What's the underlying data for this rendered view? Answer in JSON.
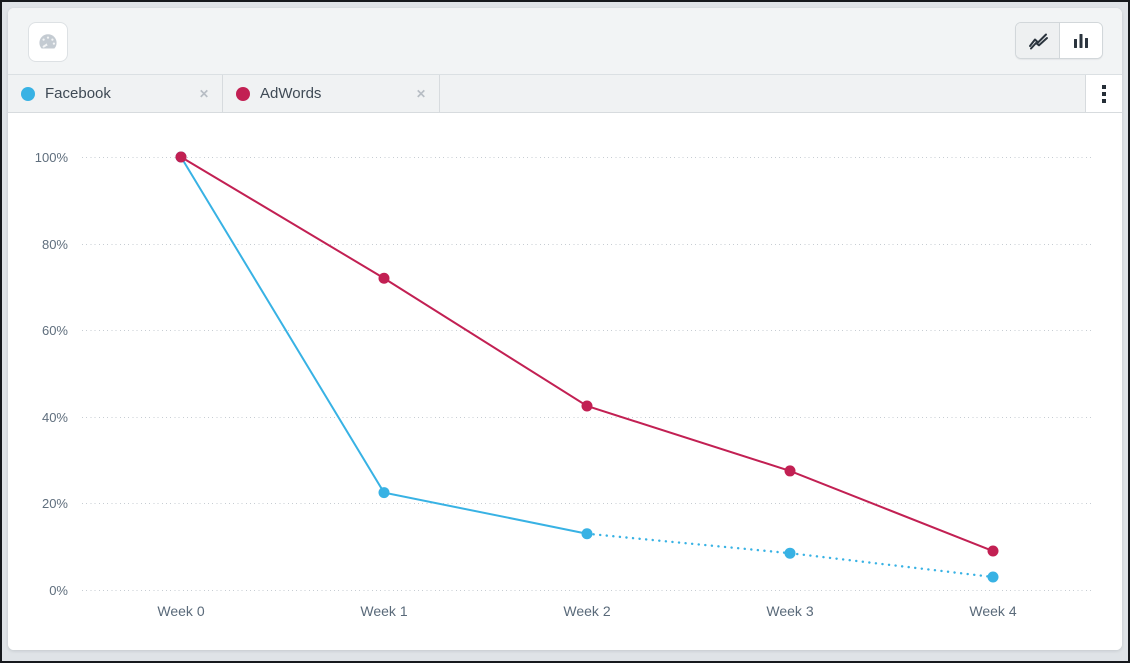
{
  "icons": {
    "close": "✕"
  },
  "toolbar": {
    "dashboard_button": {
      "icon": "gauge-icon",
      "enabled": false
    },
    "chart_type_toggle": {
      "options": [
        {
          "id": "line",
          "icon": "line-chart-icon",
          "selected": true
        },
        {
          "id": "bar",
          "icon": "bar-chart-icon",
          "selected": false
        }
      ]
    }
  },
  "series_tabs": [
    {
      "label": "Facebook",
      "color": "#38b2e4"
    },
    {
      "label": "AdWords",
      "color": "#c22053"
    }
  ],
  "tab_bar": {
    "overflow_menu_icon": "kebab-icon"
  },
  "chart_data": {
    "type": "line",
    "x": [
      "Week 0",
      "Week 1",
      "Week 2",
      "Week 3",
      "Week 4"
    ],
    "series": [
      {
        "name": "Facebook",
        "color": "#38b2e4",
        "values": [
          100,
          22.5,
          13,
          8.5,
          3
        ],
        "dotted_from_index": 2
      },
      {
        "name": "AdWords",
        "color": "#c22053",
        "values": [
          100,
          72,
          42.5,
          27.5,
          9
        ],
        "dotted_from_index": null
      }
    ],
    "y_ticks": [
      0,
      20,
      40,
      60,
      80,
      100
    ],
    "y_tick_labels": [
      "0%",
      "20%",
      "40%",
      "60%",
      "80%",
      "100%"
    ],
    "ylim": [
      0,
      100
    ],
    "grid": "dotted-horizontal",
    "grid_color": "#c7cdd3",
    "legend_position": "tabs-top"
  }
}
